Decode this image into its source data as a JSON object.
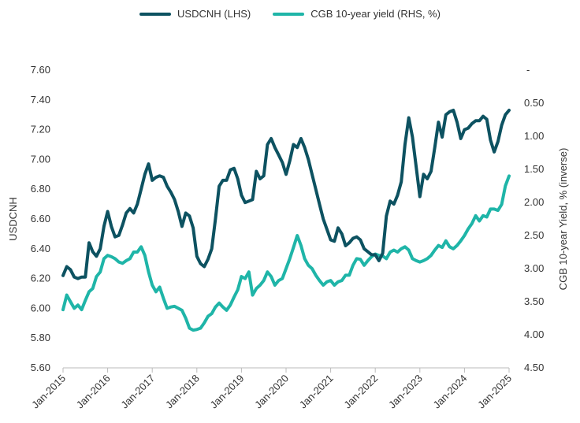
{
  "chart_data": {
    "type": "line",
    "legend": {
      "placement": "top-center"
    },
    "grid": false,
    "left_axis": {
      "label": "USDCNH",
      "ylim": [
        5.6,
        7.6
      ],
      "ticks": [
        "5.60",
        "5.80",
        "6.00",
        "6.20",
        "6.40",
        "6.60",
        "6.80",
        "7.00",
        "7.20",
        "7.40",
        "7.60"
      ]
    },
    "right_axis": {
      "label": "CGB 10-year Yield, % (inverse)",
      "inverted": true,
      "ylim": [
        4.5,
        0.0
      ],
      "ticks": [
        "-",
        "0.50",
        "1.00",
        "1.50",
        "2.00",
        "2.50",
        "3.00",
        "3.50",
        "4.00",
        "4.50"
      ]
    },
    "x_axis": {
      "type": "date",
      "range": [
        "2015-01",
        "2025-01"
      ],
      "ticks": [
        "Jan-2015",
        "Jan-2016",
        "Jan-2017",
        "Jan-2018",
        "Jan-2019",
        "Jan-2020",
        "Jan-2021",
        "Jan-2022",
        "Jan-2023",
        "Jan-2024",
        "Jan-2025"
      ]
    },
    "series": [
      {
        "name": "USDCNH (LHS)",
        "axis": "left",
        "color": "#0d5261",
        "points": [
          [
            "2015-01",
            6.22
          ],
          [
            "2015-02",
            6.28
          ],
          [
            "2015-03",
            6.26
          ],
          [
            "2015-04",
            6.21
          ],
          [
            "2015-05",
            6.2
          ],
          [
            "2015-06",
            6.21
          ],
          [
            "2015-07",
            6.21
          ],
          [
            "2015-08",
            6.44
          ],
          [
            "2015-09",
            6.38
          ],
          [
            "2015-10",
            6.35
          ],
          [
            "2015-11",
            6.4
          ],
          [
            "2015-12",
            6.55
          ],
          [
            "2016-01",
            6.65
          ],
          [
            "2016-02",
            6.55
          ],
          [
            "2016-03",
            6.48
          ],
          [
            "2016-04",
            6.49
          ],
          [
            "2016-05",
            6.56
          ],
          [
            "2016-06",
            6.64
          ],
          [
            "2016-07",
            6.67
          ],
          [
            "2016-08",
            6.64
          ],
          [
            "2016-09",
            6.7
          ],
          [
            "2016-10",
            6.8
          ],
          [
            "2016-11",
            6.9
          ],
          [
            "2016-12",
            6.97
          ],
          [
            "2017-01",
            6.86
          ],
          [
            "2017-02",
            6.88
          ],
          [
            "2017-03",
            6.89
          ],
          [
            "2017-04",
            6.88
          ],
          [
            "2017-05",
            6.82
          ],
          [
            "2017-06",
            6.78
          ],
          [
            "2017-07",
            6.73
          ],
          [
            "2017-08",
            6.65
          ],
          [
            "2017-09",
            6.55
          ],
          [
            "2017-10",
            6.64
          ],
          [
            "2017-11",
            6.62
          ],
          [
            "2017-12",
            6.54
          ],
          [
            "2018-01",
            6.35
          ],
          [
            "2018-02",
            6.3
          ],
          [
            "2018-03",
            6.28
          ],
          [
            "2018-04",
            6.33
          ],
          [
            "2018-05",
            6.4
          ],
          [
            "2018-06",
            6.6
          ],
          [
            "2018-07",
            6.82
          ],
          [
            "2018-08",
            6.86
          ],
          [
            "2018-09",
            6.86
          ],
          [
            "2018-10",
            6.93
          ],
          [
            "2018-11",
            6.94
          ],
          [
            "2018-12",
            6.87
          ],
          [
            "2019-01",
            6.76
          ],
          [
            "2019-02",
            6.71
          ],
          [
            "2019-03",
            6.72
          ],
          [
            "2019-04",
            6.73
          ],
          [
            "2019-05",
            6.92
          ],
          [
            "2019-06",
            6.87
          ],
          [
            "2019-07",
            6.89
          ],
          [
            "2019-08",
            7.1
          ],
          [
            "2019-09",
            7.14
          ],
          [
            "2019-10",
            7.08
          ],
          [
            "2019-11",
            7.03
          ],
          [
            "2019-12",
            6.98
          ],
          [
            "2020-01",
            6.9
          ],
          [
            "2020-02",
            6.99
          ],
          [
            "2020-03",
            7.1
          ],
          [
            "2020-04",
            7.08
          ],
          [
            "2020-05",
            7.14
          ],
          [
            "2020-06",
            7.08
          ],
          [
            "2020-07",
            7.0
          ],
          [
            "2020-08",
            6.9
          ],
          [
            "2020-09",
            6.8
          ],
          [
            "2020-10",
            6.7
          ],
          [
            "2020-11",
            6.6
          ],
          [
            "2020-12",
            6.53
          ],
          [
            "2021-01",
            6.46
          ],
          [
            "2021-02",
            6.45
          ],
          [
            "2021-03",
            6.54
          ],
          [
            "2021-04",
            6.5
          ],
          [
            "2021-05",
            6.42
          ],
          [
            "2021-06",
            6.44
          ],
          [
            "2021-07",
            6.47
          ],
          [
            "2021-08",
            6.48
          ],
          [
            "2021-09",
            6.46
          ],
          [
            "2021-10",
            6.4
          ],
          [
            "2021-11",
            6.38
          ],
          [
            "2021-12",
            6.36
          ],
          [
            "2022-01",
            6.36
          ],
          [
            "2022-02",
            6.32
          ],
          [
            "2022-03",
            6.37
          ],
          [
            "2022-04",
            6.62
          ],
          [
            "2022-05",
            6.72
          ],
          [
            "2022-06",
            6.7
          ],
          [
            "2022-07",
            6.76
          ],
          [
            "2022-08",
            6.85
          ],
          [
            "2022-09",
            7.1
          ],
          [
            "2022-10",
            7.28
          ],
          [
            "2022-11",
            7.15
          ],
          [
            "2022-12",
            6.95
          ],
          [
            "2023-01",
            6.75
          ],
          [
            "2023-02",
            6.9
          ],
          [
            "2023-03",
            6.87
          ],
          [
            "2023-04",
            6.92
          ],
          [
            "2023-05",
            7.08
          ],
          [
            "2023-06",
            7.25
          ],
          [
            "2023-07",
            7.15
          ],
          [
            "2023-08",
            7.3
          ],
          [
            "2023-09",
            7.32
          ],
          [
            "2023-10",
            7.33
          ],
          [
            "2023-11",
            7.25
          ],
          [
            "2023-12",
            7.14
          ],
          [
            "2024-01",
            7.2
          ],
          [
            "2024-02",
            7.21
          ],
          [
            "2024-03",
            7.24
          ],
          [
            "2024-04",
            7.26
          ],
          [
            "2024-05",
            7.26
          ],
          [
            "2024-06",
            7.29
          ],
          [
            "2024-07",
            7.27
          ],
          [
            "2024-08",
            7.13
          ],
          [
            "2024-09",
            7.05
          ],
          [
            "2024-10",
            7.12
          ],
          [
            "2024-11",
            7.23
          ],
          [
            "2024-12",
            7.3
          ],
          [
            "2025-01",
            7.33
          ]
        ]
      },
      {
        "name": "CGB 10-year yield (RHS, %)",
        "axis": "right",
        "color": "#1fb5a8",
        "points": [
          [
            "2015-01",
            3.62
          ],
          [
            "2015-02",
            3.4
          ],
          [
            "2015-03",
            3.5
          ],
          [
            "2015-04",
            3.6
          ],
          [
            "2015-05",
            3.55
          ],
          [
            "2015-06",
            3.62
          ],
          [
            "2015-07",
            3.48
          ],
          [
            "2015-08",
            3.35
          ],
          [
            "2015-09",
            3.3
          ],
          [
            "2015-10",
            3.12
          ],
          [
            "2015-11",
            3.05
          ],
          [
            "2015-12",
            2.85
          ],
          [
            "2016-01",
            2.8
          ],
          [
            "2016-02",
            2.82
          ],
          [
            "2016-03",
            2.85
          ],
          [
            "2016-04",
            2.9
          ],
          [
            "2016-05",
            2.92
          ],
          [
            "2016-06",
            2.88
          ],
          [
            "2016-07",
            2.85
          ],
          [
            "2016-08",
            2.75
          ],
          [
            "2016-09",
            2.75
          ],
          [
            "2016-10",
            2.67
          ],
          [
            "2016-11",
            2.8
          ],
          [
            "2016-12",
            3.05
          ],
          [
            "2017-01",
            3.25
          ],
          [
            "2017-02",
            3.35
          ],
          [
            "2017-03",
            3.28
          ],
          [
            "2017-04",
            3.45
          ],
          [
            "2017-05",
            3.6
          ],
          [
            "2017-06",
            3.58
          ],
          [
            "2017-07",
            3.57
          ],
          [
            "2017-08",
            3.6
          ],
          [
            "2017-09",
            3.63
          ],
          [
            "2017-10",
            3.75
          ],
          [
            "2017-11",
            3.9
          ],
          [
            "2017-12",
            3.93
          ],
          [
            "2018-01",
            3.92
          ],
          [
            "2018-02",
            3.9
          ],
          [
            "2018-03",
            3.82
          ],
          [
            "2018-04",
            3.72
          ],
          [
            "2018-05",
            3.68
          ],
          [
            "2018-06",
            3.58
          ],
          [
            "2018-07",
            3.52
          ],
          [
            "2018-08",
            3.58
          ],
          [
            "2018-09",
            3.63
          ],
          [
            "2018-10",
            3.55
          ],
          [
            "2018-11",
            3.43
          ],
          [
            "2018-12",
            3.32
          ],
          [
            "2019-01",
            3.12
          ],
          [
            "2019-02",
            3.15
          ],
          [
            "2019-03",
            3.05
          ],
          [
            "2019-04",
            3.4
          ],
          [
            "2019-05",
            3.3
          ],
          [
            "2019-06",
            3.25
          ],
          [
            "2019-07",
            3.18
          ],
          [
            "2019-08",
            3.05
          ],
          [
            "2019-09",
            3.12
          ],
          [
            "2019-10",
            3.25
          ],
          [
            "2019-11",
            3.18
          ],
          [
            "2019-12",
            3.15
          ],
          [
            "2020-01",
            3.0
          ],
          [
            "2020-02",
            2.85
          ],
          [
            "2020-03",
            2.68
          ],
          [
            "2020-04",
            2.5
          ],
          [
            "2020-05",
            2.65
          ],
          [
            "2020-06",
            2.85
          ],
          [
            "2020-07",
            2.95
          ],
          [
            "2020-08",
            3.0
          ],
          [
            "2020-09",
            3.1
          ],
          [
            "2020-10",
            3.18
          ],
          [
            "2020-11",
            3.25
          ],
          [
            "2020-12",
            3.2
          ],
          [
            "2021-01",
            3.18
          ],
          [
            "2021-02",
            3.25
          ],
          [
            "2021-03",
            3.2
          ],
          [
            "2021-04",
            3.18
          ],
          [
            "2021-05",
            3.1
          ],
          [
            "2021-06",
            3.1
          ],
          [
            "2021-07",
            2.95
          ],
          [
            "2021-08",
            2.85
          ],
          [
            "2021-09",
            2.86
          ],
          [
            "2021-10",
            2.95
          ],
          [
            "2021-11",
            2.88
          ],
          [
            "2021-12",
            2.82
          ],
          [
            "2022-01",
            2.78
          ],
          [
            "2022-02",
            2.8
          ],
          [
            "2022-03",
            2.81
          ],
          [
            "2022-04",
            2.85
          ],
          [
            "2022-05",
            2.75
          ],
          [
            "2022-06",
            2.72
          ],
          [
            "2022-07",
            2.75
          ],
          [
            "2022-08",
            2.7
          ],
          [
            "2022-09",
            2.67
          ],
          [
            "2022-10",
            2.72
          ],
          [
            "2022-11",
            2.85
          ],
          [
            "2022-12",
            2.88
          ],
          [
            "2023-01",
            2.9
          ],
          [
            "2023-02",
            2.88
          ],
          [
            "2023-03",
            2.85
          ],
          [
            "2023-04",
            2.8
          ],
          [
            "2023-05",
            2.72
          ],
          [
            "2023-06",
            2.65
          ],
          [
            "2023-07",
            2.68
          ],
          [
            "2023-08",
            2.58
          ],
          [
            "2023-09",
            2.67
          ],
          [
            "2023-10",
            2.7
          ],
          [
            "2023-11",
            2.65
          ],
          [
            "2023-12",
            2.58
          ],
          [
            "2024-01",
            2.5
          ],
          [
            "2024-02",
            2.4
          ],
          [
            "2024-03",
            2.32
          ],
          [
            "2024-04",
            2.2
          ],
          [
            "2024-05",
            2.28
          ],
          [
            "2024-06",
            2.2
          ],
          [
            "2024-07",
            2.22
          ],
          [
            "2024-08",
            2.1
          ],
          [
            "2024-09",
            2.1
          ],
          [
            "2024-10",
            2.12
          ],
          [
            "2024-11",
            2.03
          ],
          [
            "2024-12",
            1.75
          ],
          [
            "2025-01",
            1.6
          ]
        ]
      }
    ]
  }
}
